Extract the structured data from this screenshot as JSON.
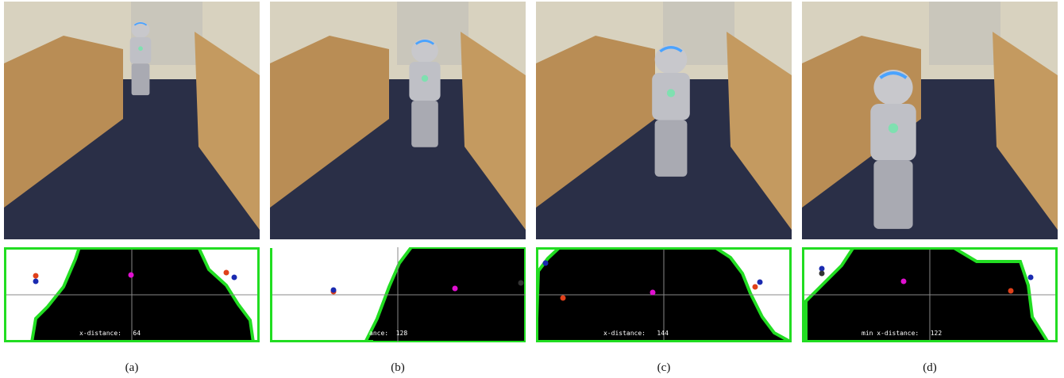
{
  "panels": [
    {
      "overlay_text": "x-distance:   64",
      "caption": "(a)"
    },
    {
      "overlay_text": "ance:  128",
      "caption": "(b)"
    },
    {
      "overlay_text": "x-distance:   144",
      "caption": "(c)"
    },
    {
      "overlay_text": "min x-distance:   122",
      "caption": "(d)"
    }
  ]
}
